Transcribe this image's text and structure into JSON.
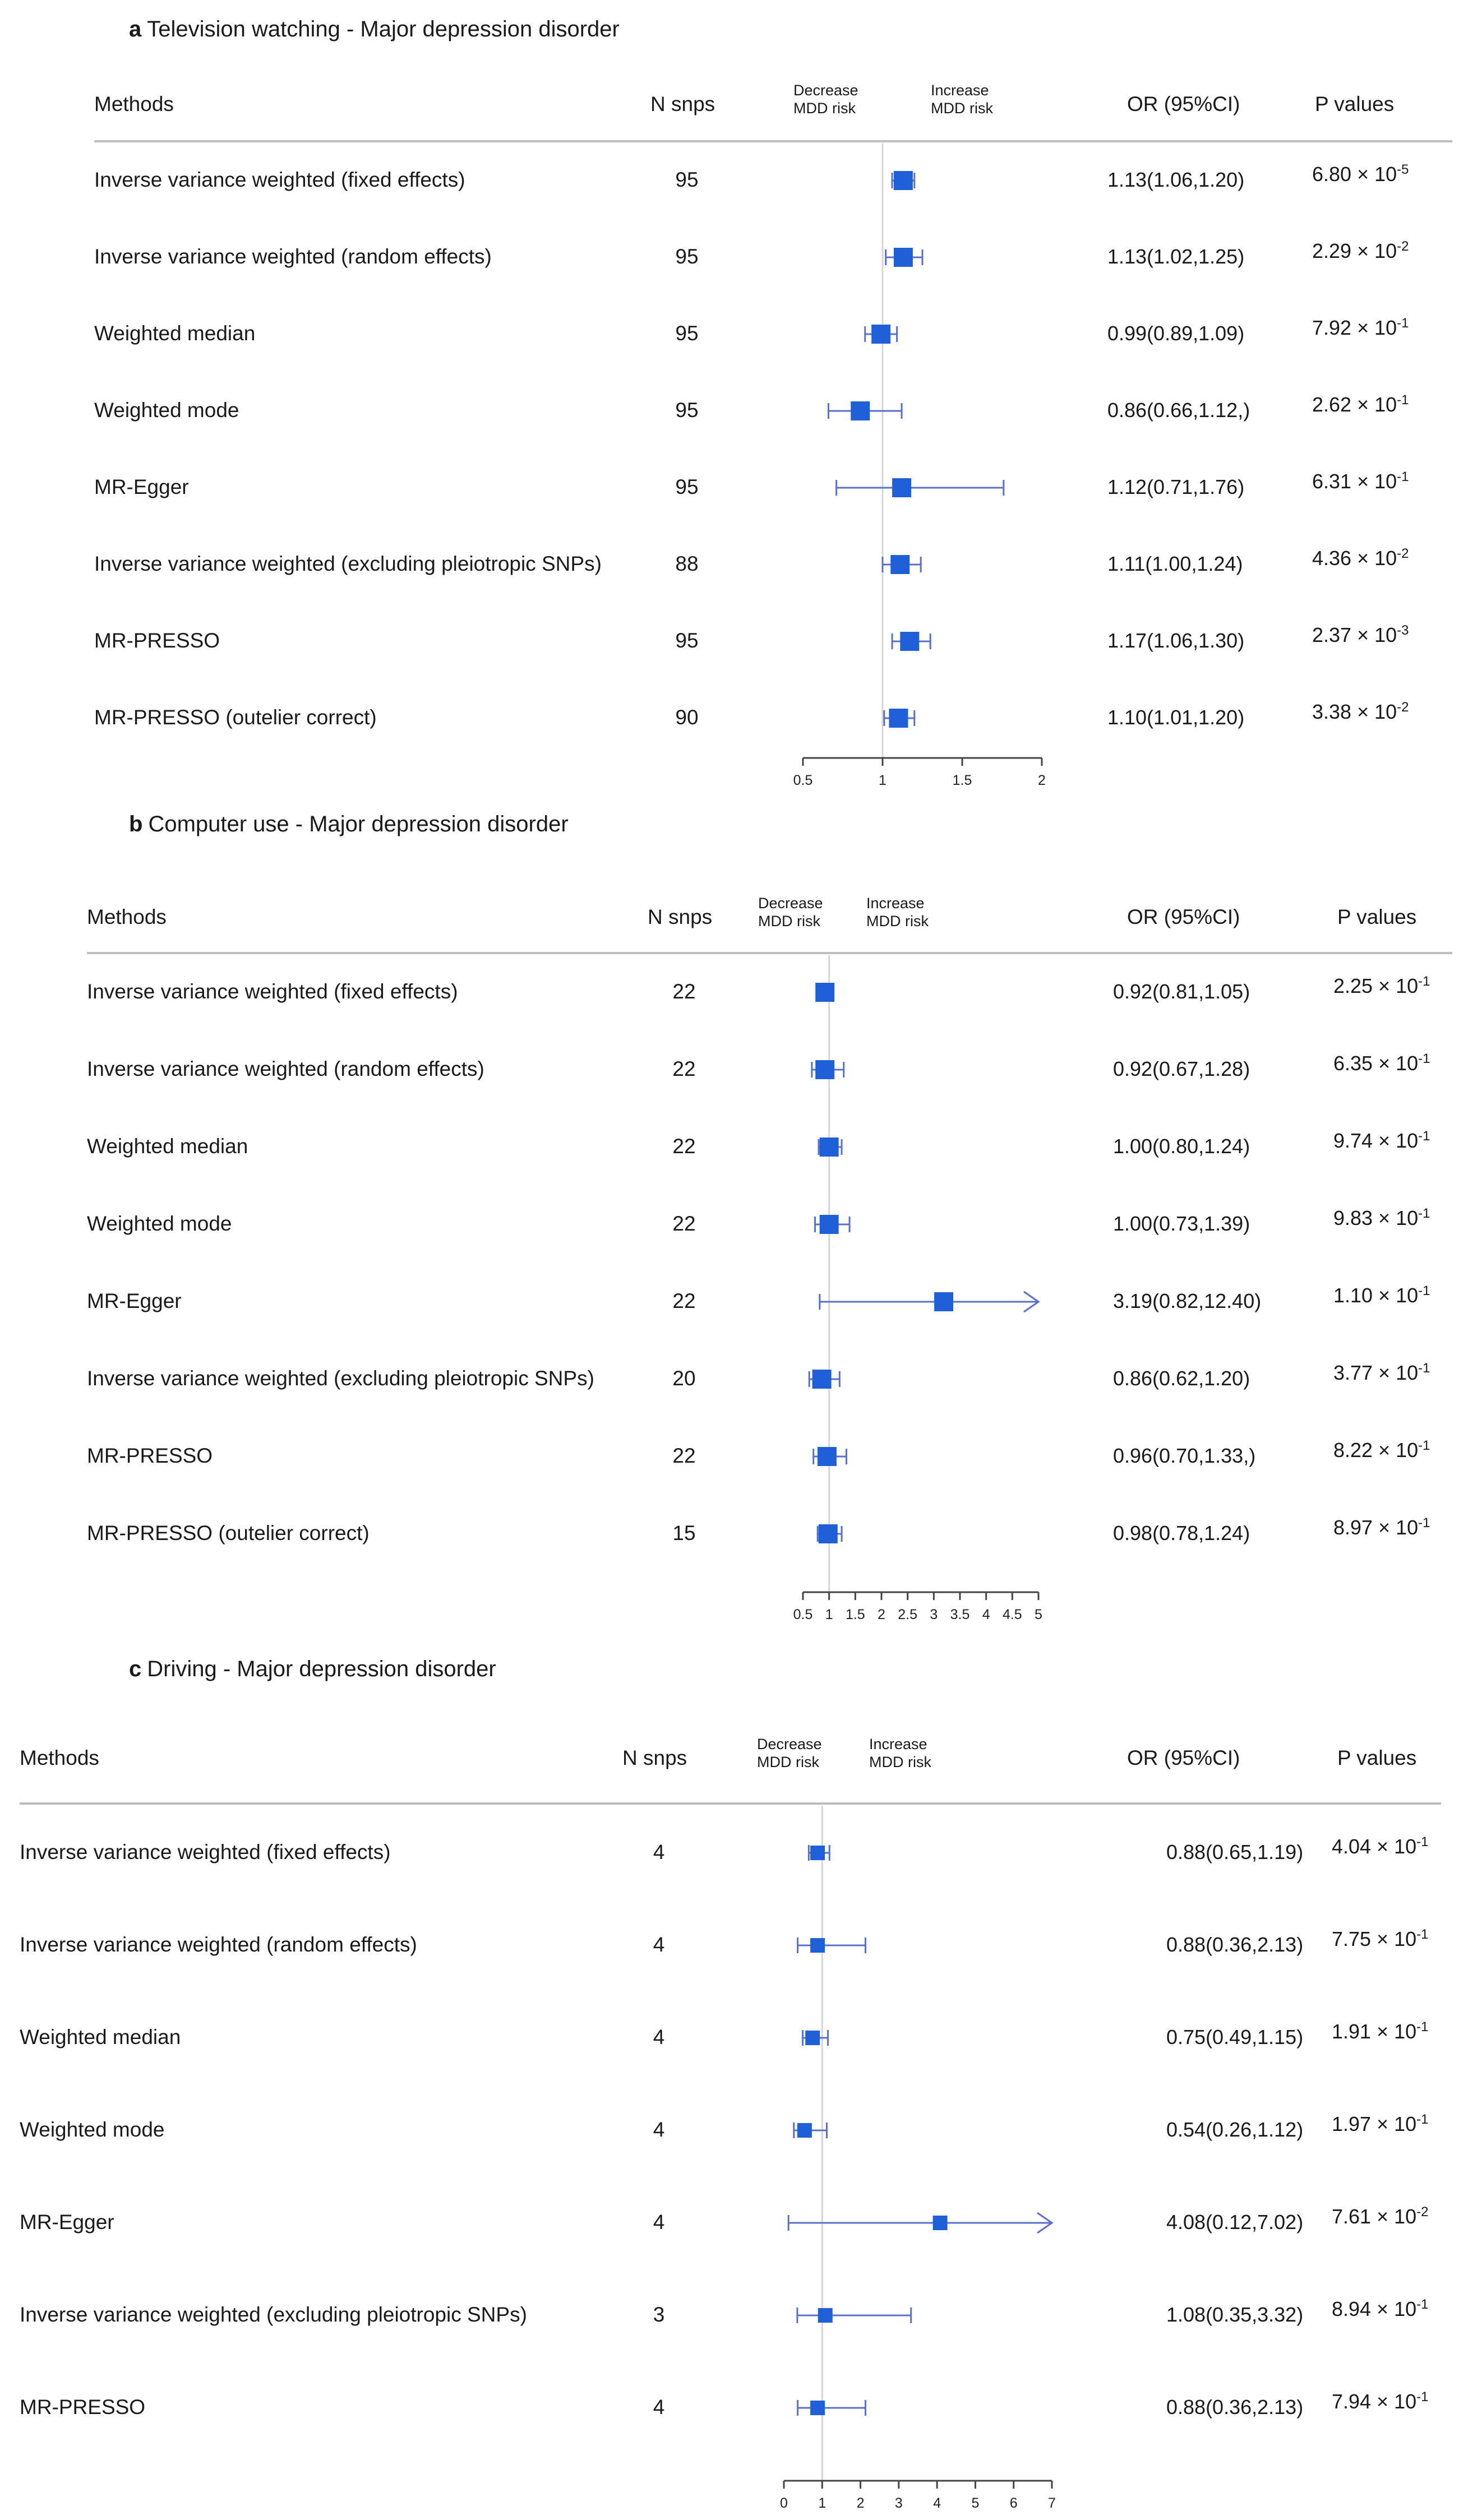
{
  "chart_data": [
    {
      "type": "forest",
      "panel_letter": "a",
      "title": "Television watching - Major depression disorder",
      "headers": {
        "methods": "Methods",
        "nsnps": "N snps",
        "decrease": [
          "Decrease",
          "MDD risk"
        ],
        "increase": [
          "Increase",
          "MDD risk"
        ],
        "or": "OR (95%CI)",
        "pvalues": "P values"
      },
      "axis": {
        "min": 0.5,
        "max": 2,
        "ticks": [
          0.5,
          1,
          1.5,
          2
        ],
        "tick_labels": [
          "0.5",
          "1",
          "1.5",
          "2"
        ],
        "reference": 1
      },
      "rows": [
        {
          "method": "Inverse variance weighted (fixed effects)",
          "nsnps": "95",
          "or": 1.13,
          "lo": 1.06,
          "hi": 1.2,
          "or_text": "1.13(1.06,1.20)",
          "p_mant": "6.80",
          "p_exp": "-5"
        },
        {
          "method": "Inverse variance weighted (random effects)",
          "nsnps": "95",
          "or": 1.13,
          "lo": 1.02,
          "hi": 1.25,
          "or_text": "1.13(1.02,1.25)",
          "p_mant": "2.29",
          "p_exp": "-2"
        },
        {
          "method": "Weighted median",
          "nsnps": "95",
          "or": 0.99,
          "lo": 0.89,
          "hi": 1.09,
          "or_text": "0.99(0.89,1.09)",
          "p_mant": "7.92",
          "p_exp": "-1"
        },
        {
          "method": "Weighted mode",
          "nsnps": "95",
          "or": 0.86,
          "lo": 0.66,
          "hi": 1.12,
          "or_text": "0.86(0.66,1.12,)",
          "p_mant": "2.62",
          "p_exp": "-1"
        },
        {
          "method": "MR-Egger",
          "nsnps": "95",
          "or": 1.12,
          "lo": 0.71,
          "hi": 1.76,
          "or_text": "1.12(0.71,1.76)",
          "p_mant": "6.31",
          "p_exp": "-1"
        },
        {
          "method": "Inverse variance weighted (excluding pleiotropic SNPs)",
          "nsnps": "88",
          "or": 1.11,
          "lo": 1.0,
          "hi": 1.24,
          "or_text": "1.11(1.00,1.24)",
          "p_mant": "4.36",
          "p_exp": "-2"
        },
        {
          "method": "MR-PRESSO",
          "nsnps": "95",
          "or": 1.17,
          "lo": 1.06,
          "hi": 1.3,
          "or_text": "1.17(1.06,1.30)",
          "p_mant": "2.37",
          "p_exp": "-3"
        },
        {
          "method": "MR-PRESSO (outelier correct)",
          "nsnps": "90",
          "or": 1.1,
          "lo": 1.01,
          "hi": 1.2,
          "or_text": "1.10(1.01,1.20)",
          "p_mant": "3.38",
          "p_exp": "-2"
        }
      ]
    },
    {
      "type": "forest",
      "panel_letter": "b",
      "title": "Computer use - Major depression disorder",
      "headers": {
        "methods": "Methods",
        "nsnps": "N snps",
        "decrease": [
          "Decrease",
          "MDD risk"
        ],
        "increase": [
          "Increase",
          "MDD risk"
        ],
        "or": "OR (95%CI)",
        "pvalues": "P values"
      },
      "axis": {
        "min": 0.5,
        "max": 5,
        "ticks": [
          0.5,
          1,
          1.5,
          2,
          2.5,
          3,
          3.5,
          4,
          4.5,
          5
        ],
        "tick_labels": [
          "0.5",
          "1",
          "1.5",
          "2",
          "2.5",
          "3",
          "3.5",
          "4",
          "4.5",
          "5"
        ],
        "reference": 1
      },
      "rows": [
        {
          "method": "Inverse variance weighted (fixed effects)",
          "nsnps": "22",
          "or": 0.92,
          "lo": 0.81,
          "hi": 1.05,
          "or_text": "0.92(0.81,1.05)",
          "p_mant": "2.25",
          "p_exp": "-1"
        },
        {
          "method": "Inverse variance weighted (random effects)",
          "nsnps": "22",
          "or": 0.92,
          "lo": 0.67,
          "hi": 1.28,
          "or_text": "0.92(0.67,1.28)",
          "p_mant": "6.35",
          "p_exp": "-1"
        },
        {
          "method": "Weighted median",
          "nsnps": "22",
          "or": 1.0,
          "lo": 0.8,
          "hi": 1.24,
          "or_text": "1.00(0.80,1.24)",
          "p_mant": "9.74",
          "p_exp": "-1"
        },
        {
          "method": "Weighted mode",
          "nsnps": "22",
          "or": 1.0,
          "lo": 0.73,
          "hi": 1.39,
          "or_text": "1.00(0.73,1.39)",
          "p_mant": "9.83",
          "p_exp": "-1"
        },
        {
          "method": "MR-Egger",
          "nsnps": "22",
          "or": 3.19,
          "lo": 0.82,
          "hi": 12.4,
          "or_text": "3.19(0.82,12.40)",
          "p_mant": "1.10",
          "p_exp": "-1"
        },
        {
          "method": "Inverse variance weighted (excluding pleiotropic SNPs)",
          "nsnps": "20",
          "or": 0.86,
          "lo": 0.62,
          "hi": 1.2,
          "or_text": "0.86(0.62,1.20)",
          "p_mant": "3.77",
          "p_exp": "-1"
        },
        {
          "method": "MR-PRESSO",
          "nsnps": "22",
          "or": 0.96,
          "lo": 0.7,
          "hi": 1.33,
          "or_text": "0.96(0.70,1.33,)",
          "p_mant": "8.22",
          "p_exp": "-1"
        },
        {
          "method": "MR-PRESSO (outelier correct)",
          "nsnps": "15",
          "or": 0.98,
          "lo": 0.78,
          "hi": 1.24,
          "or_text": "0.98(0.78,1.24)",
          "p_mant": "8.97",
          "p_exp": "-1"
        }
      ]
    },
    {
      "type": "forest",
      "panel_letter": "c",
      "title": "Driving - Major depression disorder",
      "headers": {
        "methods": "Methods",
        "nsnps": "N snps",
        "decrease": [
          "Decrease",
          "MDD risk"
        ],
        "increase": [
          "Increase",
          "MDD risk"
        ],
        "or": "OR (95%CI)",
        "pvalues": "P values"
      },
      "axis": {
        "min": 0,
        "max": 7,
        "ticks": [
          0,
          1,
          2,
          3,
          4,
          5,
          6,
          7
        ],
        "tick_labels": [
          "0",
          "1",
          "2",
          "3",
          "4",
          "5",
          "6",
          "7"
        ],
        "reference": 1
      },
      "rows": [
        {
          "method": "Inverse variance weighted (fixed effects)",
          "nsnps": "4",
          "or": 0.88,
          "lo": 0.65,
          "hi": 1.19,
          "or_text": "0.88(0.65,1.19)",
          "p_mant": "4.04",
          "p_exp": "-1"
        },
        {
          "method": "Inverse variance weighted (random effects)",
          "nsnps": "4",
          "or": 0.88,
          "lo": 0.36,
          "hi": 2.13,
          "or_text": "0.88(0.36,2.13)",
          "p_mant": "7.75",
          "p_exp": "-1"
        },
        {
          "method": "Weighted median",
          "nsnps": "4",
          "or": 0.75,
          "lo": 0.49,
          "hi": 1.15,
          "or_text": "0.75(0.49,1.15)",
          "p_mant": "1.91",
          "p_exp": "-1"
        },
        {
          "method": "Weighted mode",
          "nsnps": "4",
          "or": 0.54,
          "lo": 0.26,
          "hi": 1.12,
          "or_text": "0.54(0.26,1.12)",
          "p_mant": "1.97",
          "p_exp": "-1"
        },
        {
          "method": "MR-Egger",
          "nsnps": "4",
          "or": 4.08,
          "lo": 0.12,
          "hi": 7.02,
          "or_text": "4.08(0.12,7.02)",
          "p_mant": "7.61",
          "p_exp": "-2"
        },
        {
          "method": "Inverse variance weighted (excluding pleiotropic SNPs)",
          "nsnps": "3",
          "or": 1.08,
          "lo": 0.35,
          "hi": 3.32,
          "or_text": "1.08(0.35,3.32)",
          "p_mant": "8.94",
          "p_exp": "-1"
        },
        {
          "method": "MR-PRESSO",
          "nsnps": "4",
          "or": 0.88,
          "lo": 0.36,
          "hi": 2.13,
          "or_text": "0.88(0.36,2.13)",
          "p_mant": "7.94",
          "p_exp": "-1"
        }
      ]
    }
  ],
  "colors": {
    "marker": "#1f5fd8",
    "ci_line": "#5a6fc8",
    "ref_line": "#d6d6d6",
    "axis": "#444444",
    "rule": "#bdbdbd"
  }
}
